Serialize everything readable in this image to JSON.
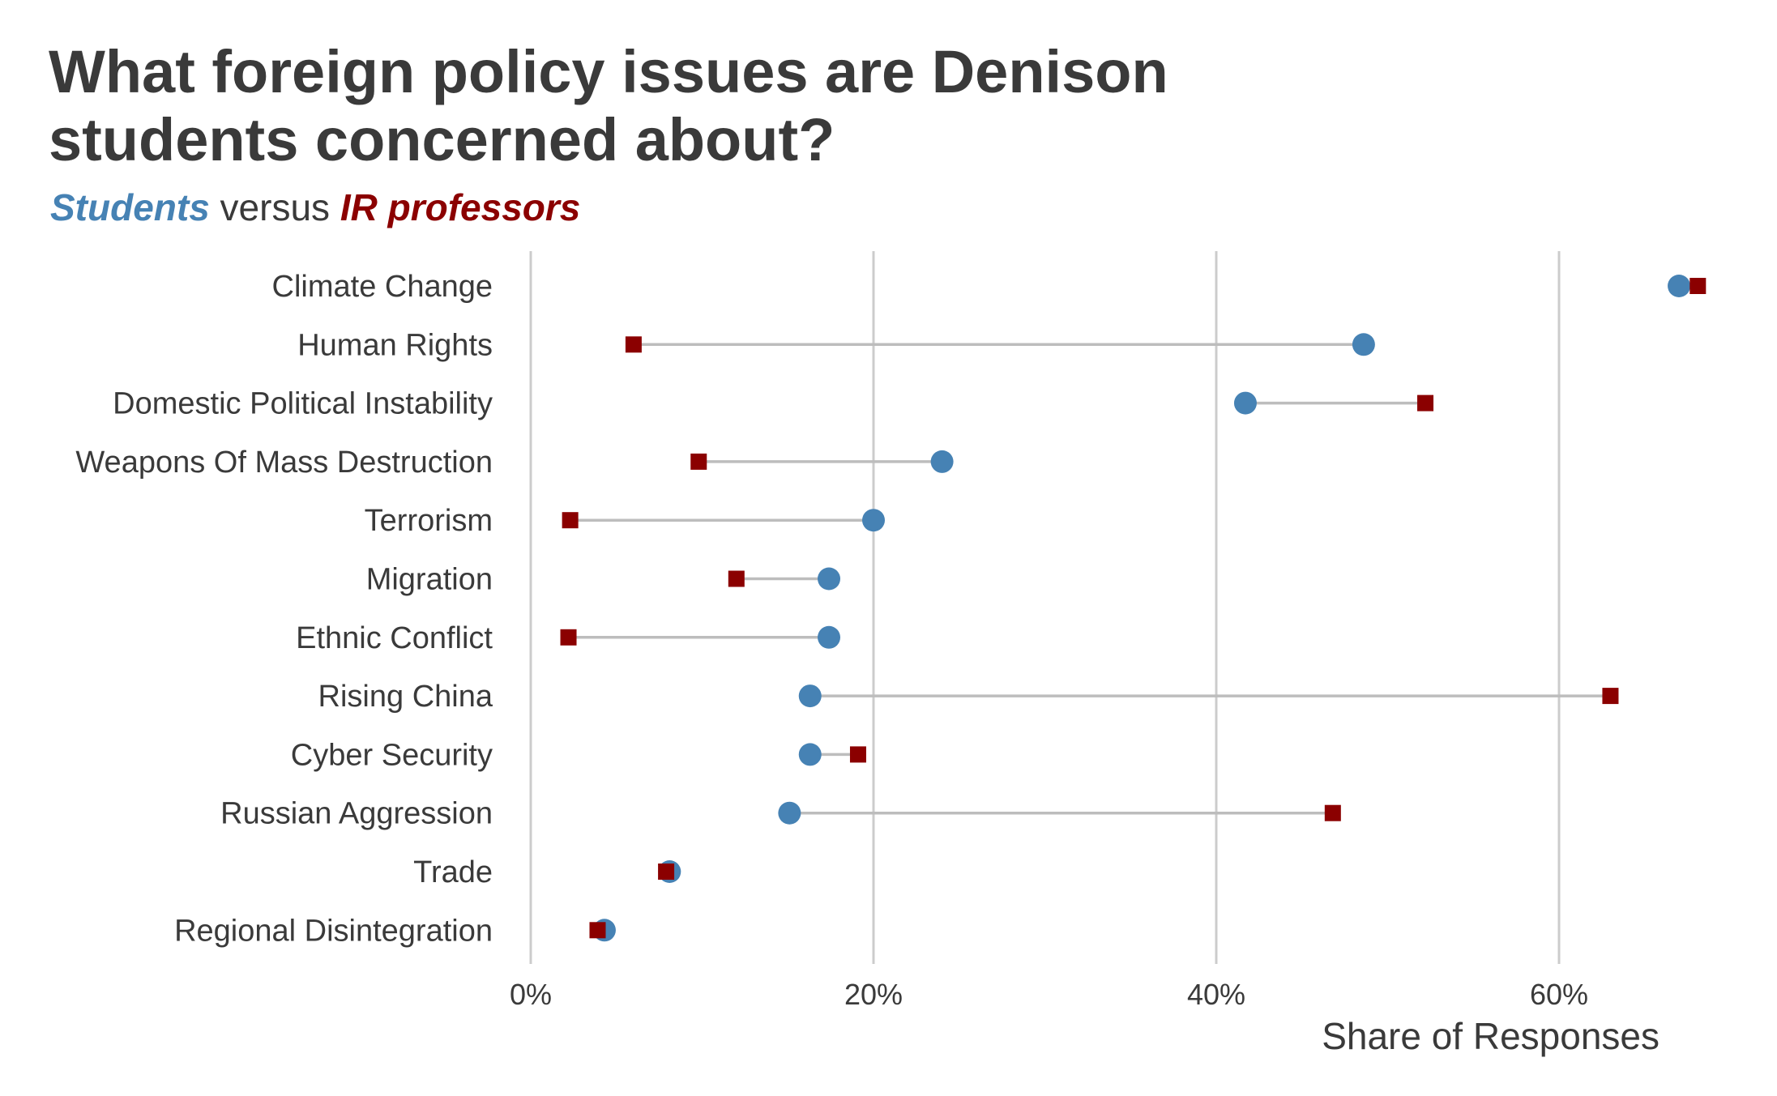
{
  "chart_data": {
    "type": "dumbbell",
    "title_lines": [
      "What foreign policy issues are Denison",
      "students concerned about?"
    ],
    "subtitle": {
      "students": "Students",
      "middle": " versus ",
      "professors": "IR professors"
    },
    "xlabel": "Share of Responses",
    "xlim": [
      0,
      68
    ],
    "x_ticks": [
      0,
      20,
      40,
      60
    ],
    "x_tick_labels": [
      "0%",
      "20%",
      "40%",
      "60%"
    ],
    "grid": "vertical",
    "colors": {
      "students": "#4682b4",
      "professors": "#8b0000",
      "connector": "#bdbdbd",
      "grid": "#cccccc"
    },
    "categories": [
      "Climate Change",
      "Human Rights",
      "Domestic Political Instability",
      "Weapons Of Mass Destruction",
      "Terrorism",
      "Migration",
      "Ethnic Conflict",
      "Rising China",
      "Cyber Security",
      "Russian Aggression",
      "Trade",
      "Regional Disintegration"
    ],
    "series": [
      {
        "name": "Students",
        "marker": "circle",
        "values": [
          67.0,
          48.6,
          41.7,
          24.0,
          20.0,
          17.4,
          17.4,
          16.3,
          16.3,
          15.1,
          8.1,
          4.3
        ]
      },
      {
        "name": "IR professors",
        "marker": "square",
        "values": [
          68.1,
          6.0,
          52.2,
          9.8,
          2.3,
          12.0,
          2.2,
          63.0,
          19.1,
          46.8,
          7.9,
          3.9
        ]
      }
    ]
  }
}
